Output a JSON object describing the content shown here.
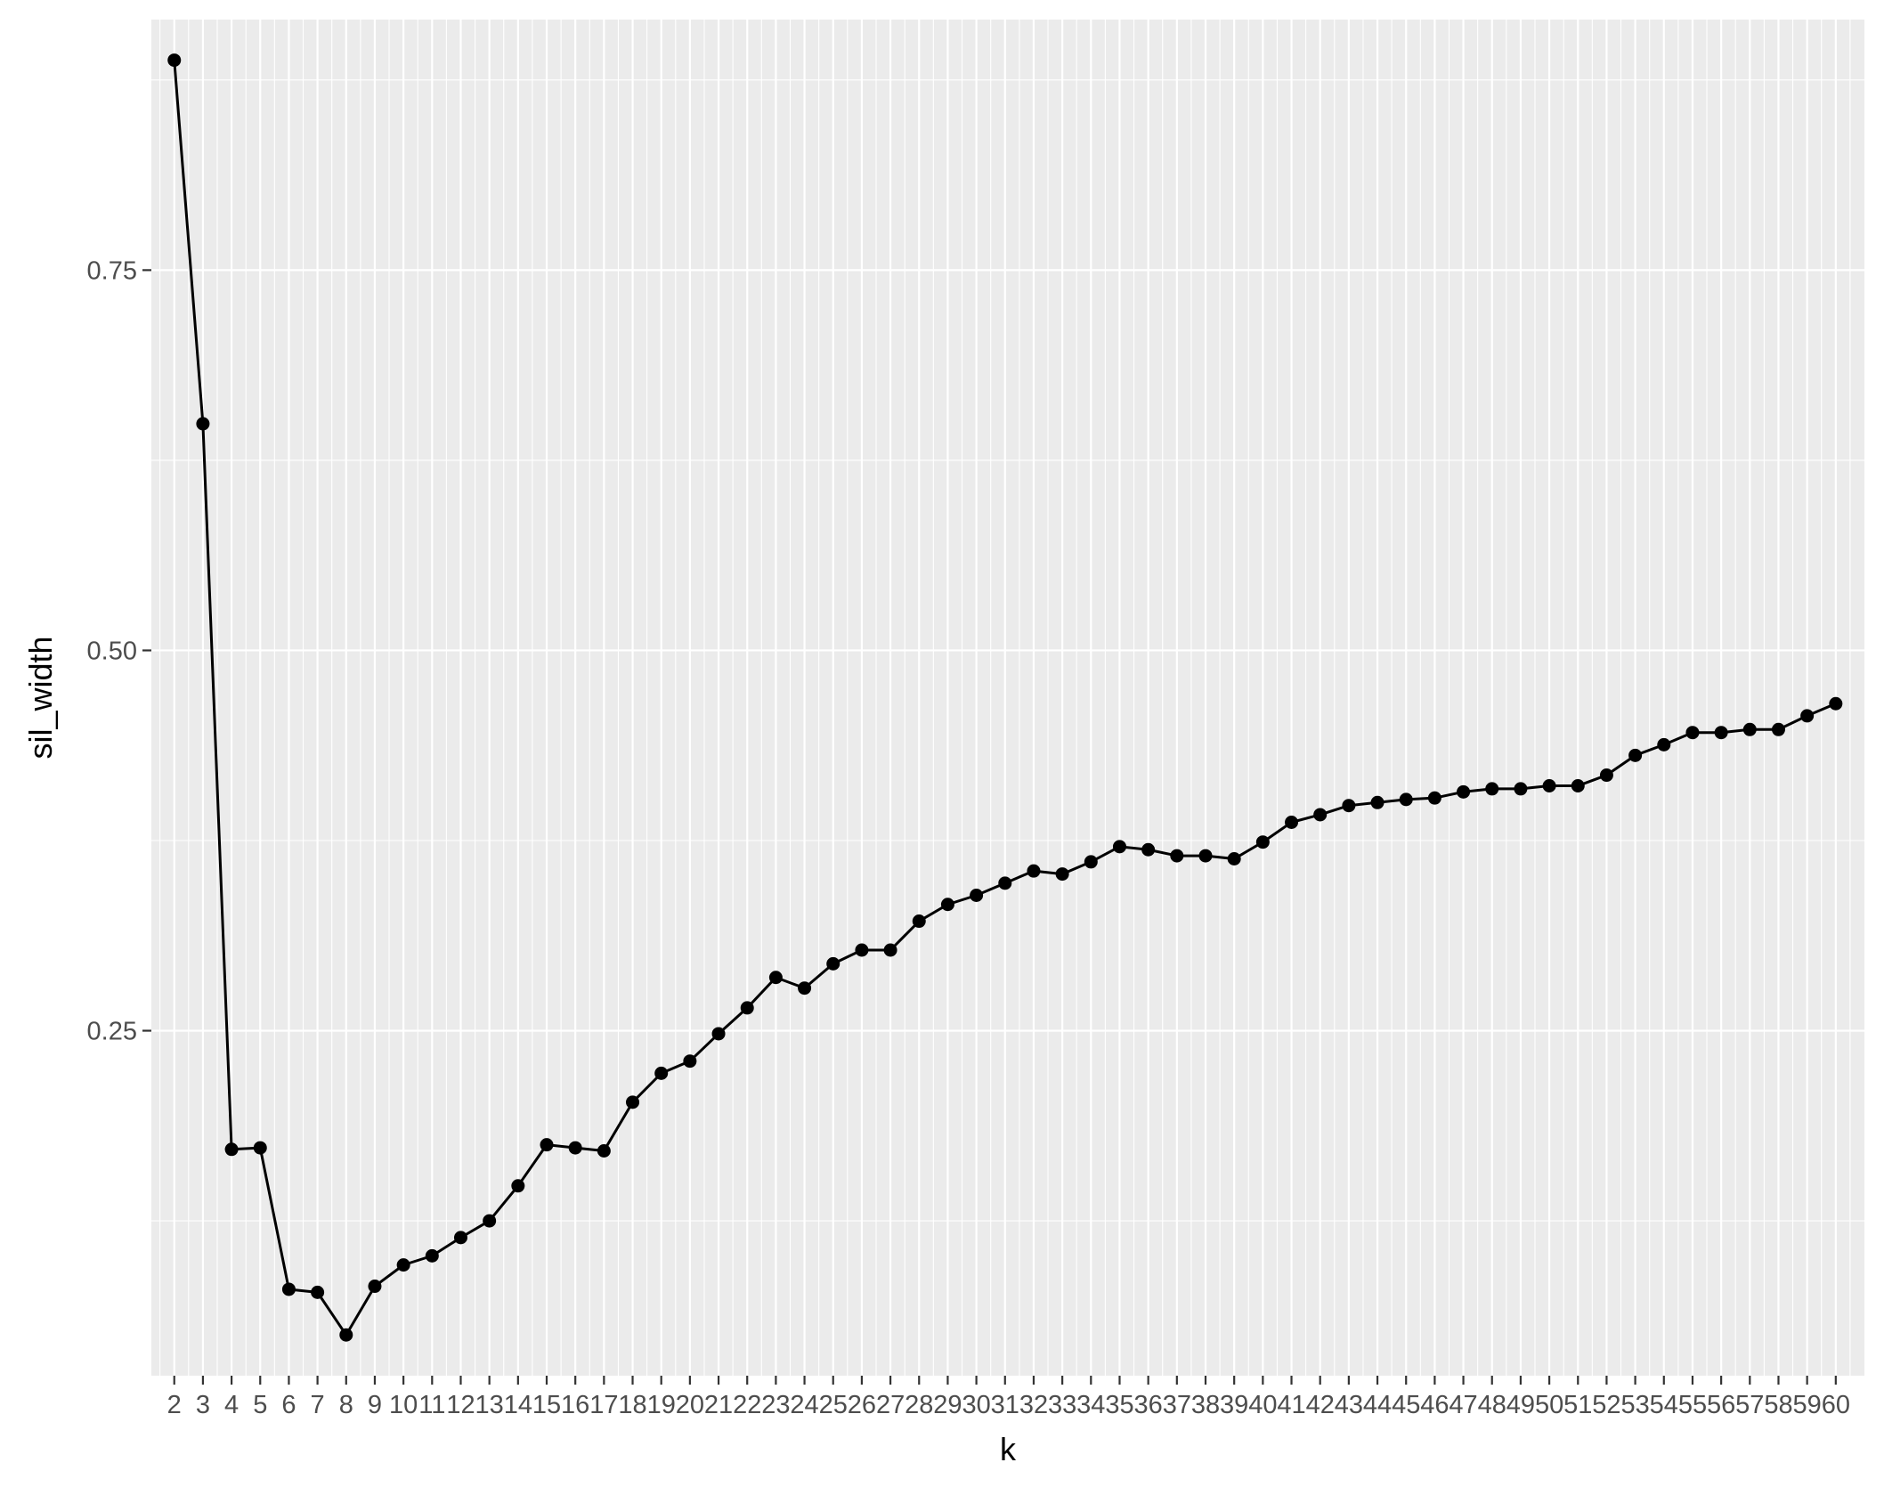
{
  "chart_data": {
    "type": "line",
    "title": "",
    "xlabel": "k",
    "ylabel": "sil_width",
    "x": [
      2,
      3,
      4,
      5,
      6,
      7,
      8,
      9,
      10,
      11,
      12,
      13,
      14,
      15,
      16,
      17,
      18,
      19,
      20,
      21,
      22,
      23,
      24,
      25,
      26,
      27,
      28,
      29,
      30,
      31,
      32,
      33,
      34,
      35,
      36,
      37,
      38,
      39,
      40,
      41,
      42,
      43,
      44,
      45,
      46,
      47,
      48,
      49,
      50,
      51,
      52,
      53,
      54,
      55,
      56,
      57,
      58,
      59,
      60
    ],
    "series": [
      {
        "values": [
          0.888,
          0.649,
          0.172,
          0.173,
          0.08,
          0.078,
          0.05,
          0.082,
          0.096,
          0.102,
          0.114,
          0.125,
          0.148,
          0.175,
          0.173,
          0.171,
          0.203,
          0.222,
          0.23,
          0.248,
          0.265,
          0.285,
          0.278,
          0.294,
          0.303,
          0.303,
          0.322,
          0.333,
          0.339,
          0.347,
          0.355,
          0.353,
          0.361,
          0.371,
          0.369,
          0.365,
          0.365,
          0.363,
          0.374,
          0.387,
          0.392,
          0.398,
          0.4,
          0.402,
          0.403,
          0.407,
          0.409,
          0.409,
          0.411,
          0.411,
          0.418,
          0.431,
          0.438,
          0.446,
          0.446,
          0.448,
          0.448,
          0.457,
          0.465
        ],
        "color": "#000000"
      }
    ],
    "x_ticks": [
      "2",
      "3",
      "4",
      "5",
      "6",
      "7",
      "8",
      "9",
      "10",
      "11",
      "12",
      "13",
      "14",
      "15",
      "16",
      "17",
      "18",
      "19",
      "20",
      "21",
      "22",
      "23",
      "24",
      "25",
      "26",
      "27",
      "28",
      "29",
      "30",
      "31",
      "32",
      "33",
      "34",
      "35",
      "36",
      "37",
      "38",
      "39",
      "40",
      "41",
      "42",
      "43",
      "44",
      "45",
      "46",
      "47",
      "48",
      "49",
      "50",
      "51",
      "52",
      "53",
      "54",
      "55",
      "56",
      "57",
      "58",
      "59",
      "60"
    ],
    "y_ticks": [
      "0.25",
      "0.50",
      "0.75"
    ],
    "y_tick_values": [
      0.25,
      0.5,
      0.75
    ],
    "xlim": [
      1.2,
      61
    ],
    "ylim": [
      0.0232,
      0.9147
    ],
    "grid": true,
    "background": "#ebebeb",
    "legend": "none"
  }
}
